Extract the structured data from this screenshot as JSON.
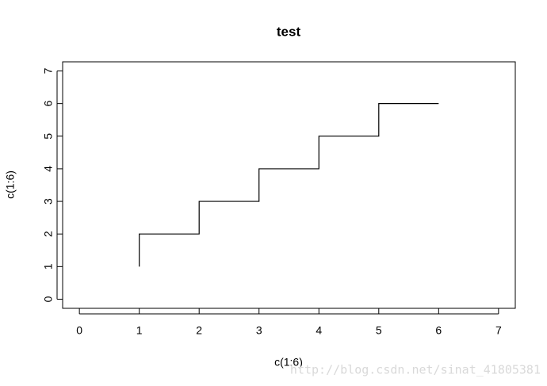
{
  "chart_data": {
    "type": "line",
    "drawstyle": "steps-pre",
    "title": "test",
    "x_label": "c(1:6)",
    "y_label": "c(1:6)",
    "x": [
      1,
      2,
      3,
      4,
      5,
      6
    ],
    "series": [
      {
        "color": "#000000",
        "values": [
          1,
          2,
          3,
          4,
          5,
          6
        ]
      }
    ],
    "xlim": [
      -0.28,
      7.28
    ],
    "xticks": [
      0,
      1,
      2,
      3,
      4,
      5,
      6,
      7
    ],
    "ylim": [
      -0.28,
      7.28
    ],
    "yticks": [
      0,
      1,
      2,
      3,
      4,
      5,
      6,
      7
    ],
    "watermark": "http://blog.csdn.net/sinat_41805381"
  }
}
